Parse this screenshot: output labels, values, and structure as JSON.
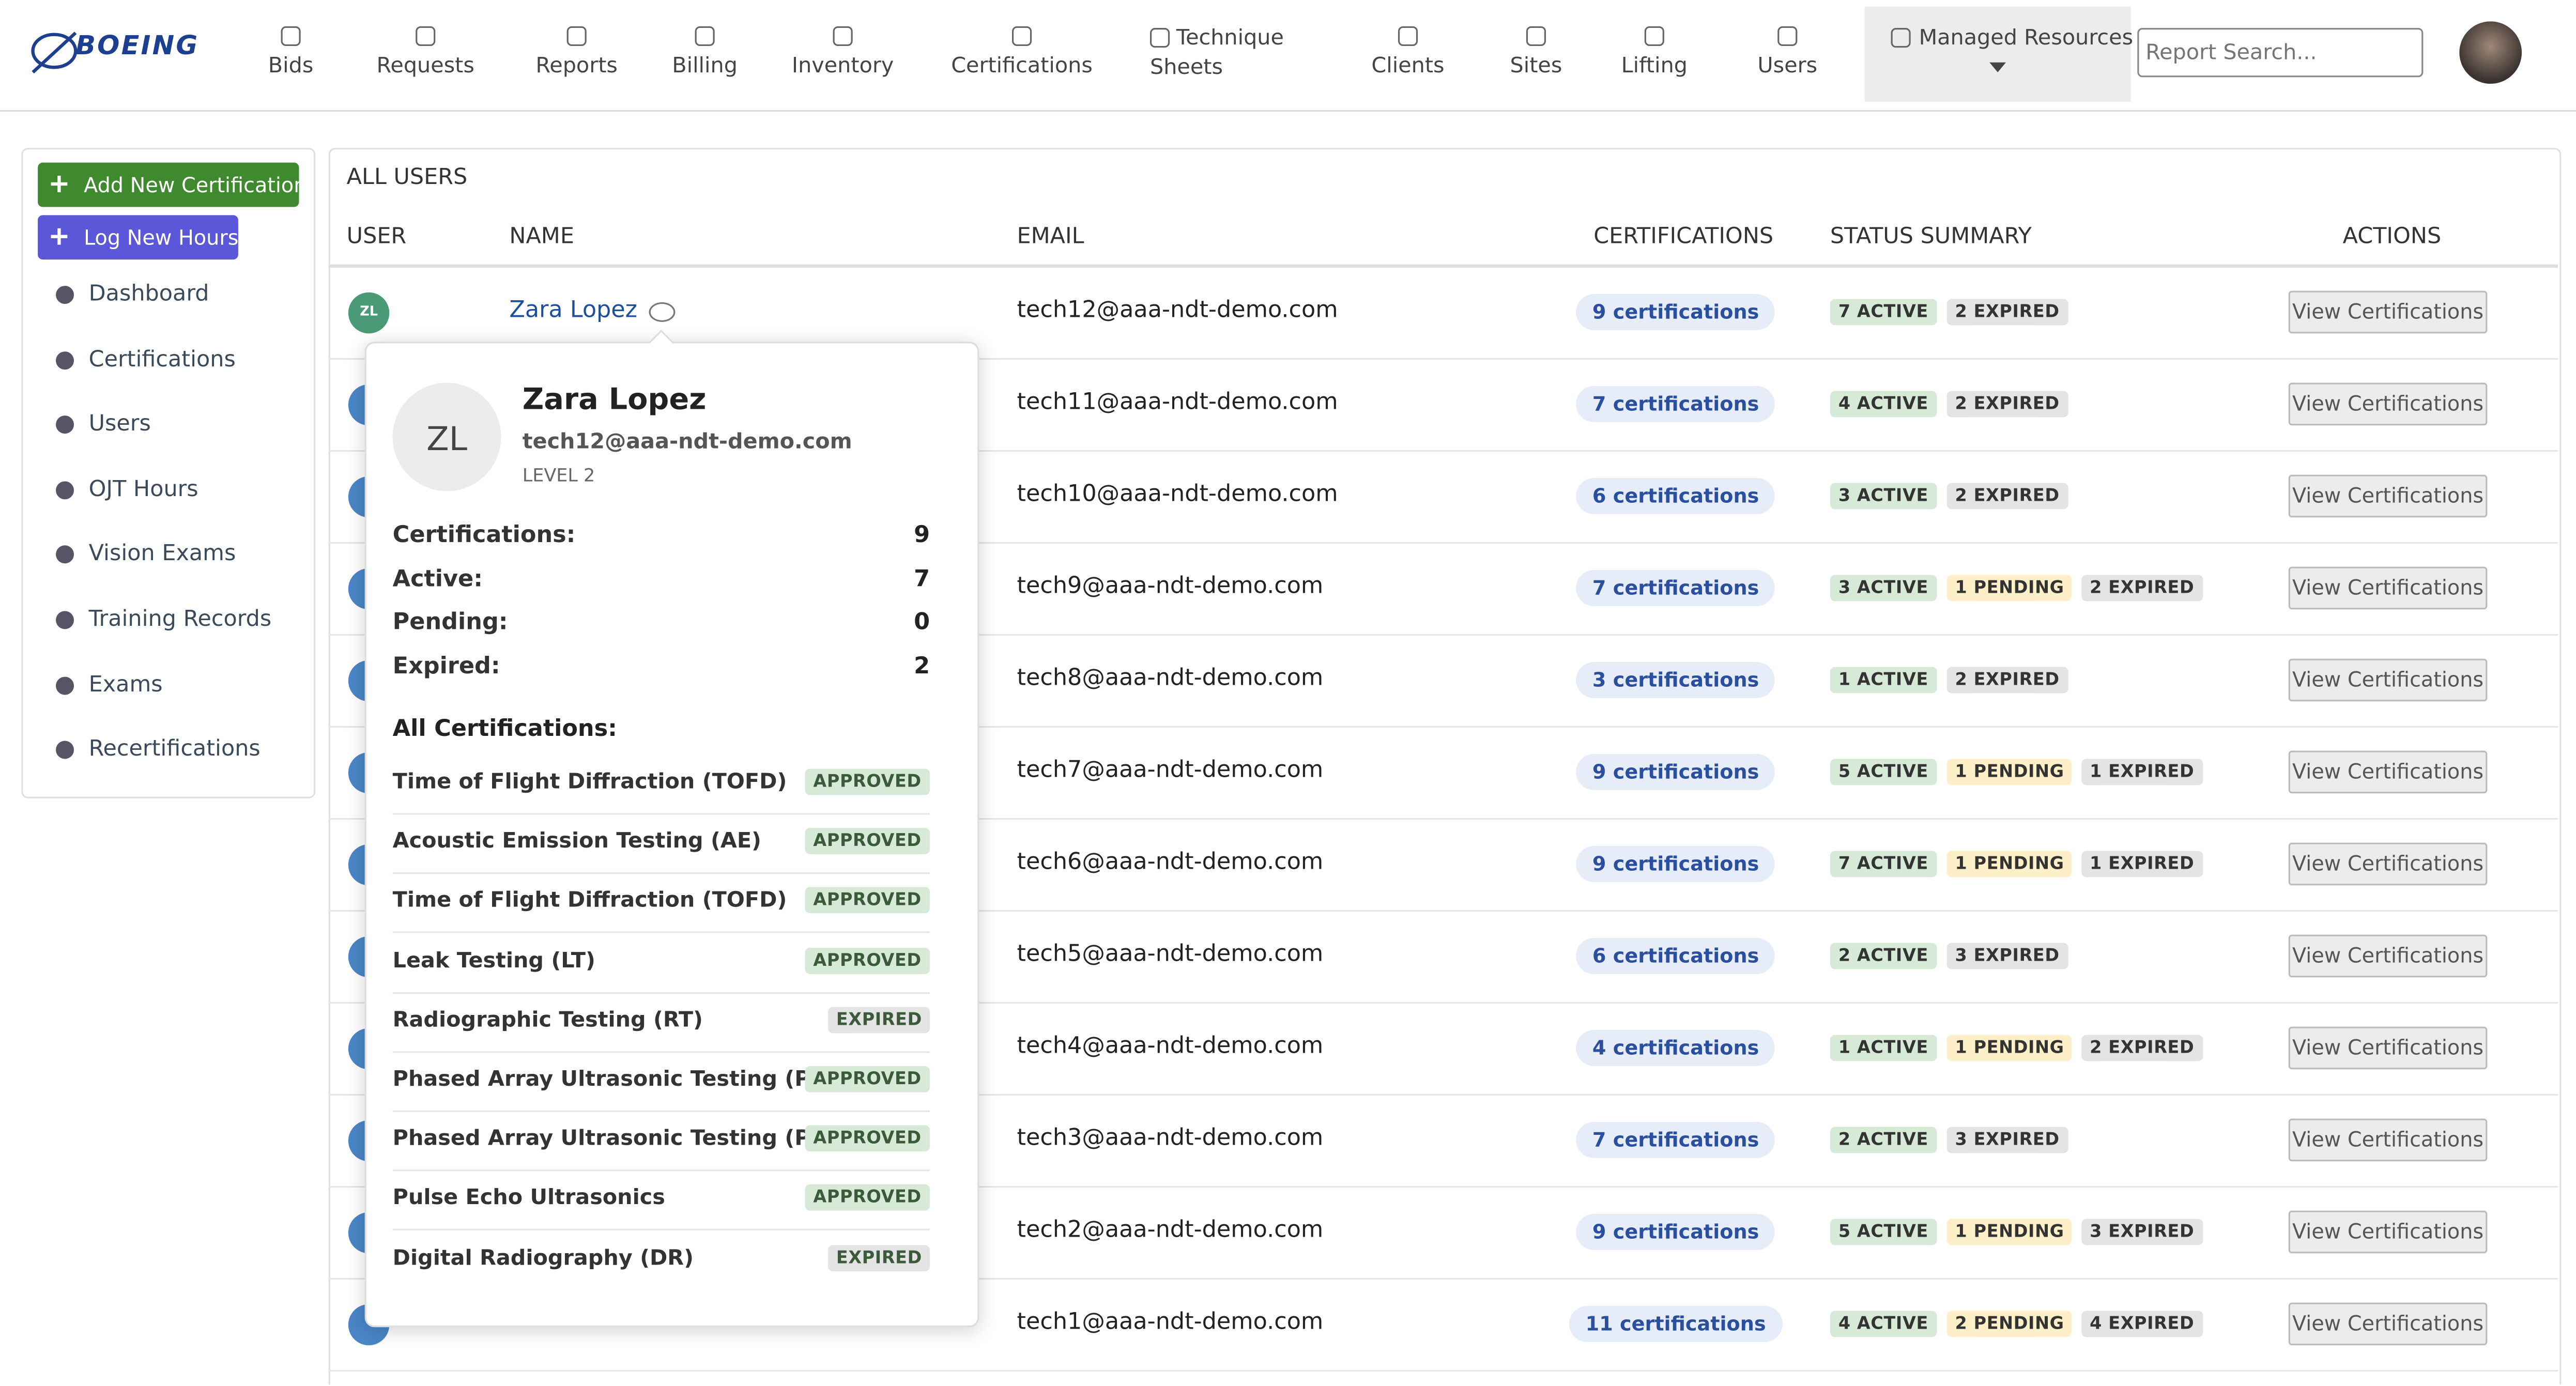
{
  "nav": {
    "brand": "BOEING",
    "items": [
      "Bids",
      "Requests",
      "Reports",
      "Billing",
      "Inventory",
      "Certifications",
      "Technique Sheets",
      "Clients",
      "Sites",
      "Lifting",
      "Users"
    ],
    "managed": "Managed Resources",
    "search_placeholder": "Report Search..."
  },
  "sidebar": {
    "buttons": [
      "Add New Certification",
      "Log New Hours"
    ],
    "links": [
      "Dashboard",
      "Certifications",
      "Users",
      "OJT Hours",
      "Vision Exams",
      "Training Records",
      "Exams",
      "Recertifications"
    ]
  },
  "table": {
    "title": "ALL USERS",
    "columns": [
      "USER",
      "NAME",
      "EMAIL",
      "CERTIFICATIONS",
      "STATUS SUMMARY",
      "ACTIONS"
    ],
    "rows": [
      {
        "initials": "ZL",
        "name": "Zara Lopez",
        "email": "tech12@aaa-ndt-demo.com",
        "certifications": "9 certifications",
        "statuses": [
          {
            "label": "7 ACTIVE",
            "color": "#d6ead7"
          },
          {
            "label": "2 EXPIRED",
            "color": "#e4e4e4"
          }
        ],
        "action": "View Certifications"
      },
      {
        "email": "tech11@aaa-ndt-demo.com",
        "certifications": "7 certifications",
        "statuses": [
          {
            "label": "4 ACTIVE",
            "color": "#d6ead7"
          },
          {
            "label": "2 EXPIRED",
            "color": "#e4e4e4"
          }
        ],
        "action": "View Certifications"
      },
      {
        "email": "tech10@aaa-ndt-demo.com",
        "certifications": "6 certifications",
        "statuses": [
          {
            "label": "3 ACTIVE",
            "color": "#d6ead7"
          },
          {
            "label": "2 EXPIRED",
            "color": "#e4e4e4"
          }
        ],
        "action": "View Certifications"
      },
      {
        "email": "tech9@aaa-ndt-demo.com",
        "certifications": "7 certifications",
        "statuses": [
          {
            "label": "3 ACTIVE",
            "color": "#d6ead7"
          },
          {
            "label": "1 PENDING",
            "color": "#fdf0c8"
          },
          {
            "label": "2 EXPIRED",
            "color": "#e4e4e4"
          }
        ],
        "action": "View Certifications"
      },
      {
        "email": "tech8@aaa-ndt-demo.com",
        "certifications": "3 certifications",
        "statuses": [
          {
            "label": "1 ACTIVE",
            "color": "#d6ead7"
          },
          {
            "label": "2 EXPIRED",
            "color": "#e4e4e4"
          }
        ],
        "action": "View Certifications"
      },
      {
        "email": "tech7@aaa-ndt-demo.com",
        "certifications": "9 certifications",
        "statuses": [
          {
            "label": "5 ACTIVE",
            "color": "#d6ead7"
          },
          {
            "label": "1 PENDING",
            "color": "#fdf0c8"
          },
          {
            "label": "1 EXPIRED",
            "color": "#e4e4e4"
          }
        ],
        "action": "View Certifications"
      },
      {
        "email": "tech6@aaa-ndt-demo.com",
        "certifications": "9 certifications",
        "statuses": [
          {
            "label": "7 ACTIVE",
            "color": "#d6ead7"
          },
          {
            "label": "1 PENDING",
            "color": "#fdf0c8"
          },
          {
            "label": "1 EXPIRED",
            "color": "#e4e4e4"
          }
        ],
        "action": "View Certifications"
      },
      {
        "email": "tech5@aaa-ndt-demo.com",
        "certifications": "6 certifications",
        "statuses": [
          {
            "label": "2 ACTIVE",
            "color": "#d6ead7"
          },
          {
            "label": "3 EXPIRED",
            "color": "#e4e4e4"
          }
        ],
        "action": "View Certifications"
      },
      {
        "email": "tech4@aaa-ndt-demo.com",
        "certifications": "4 certifications",
        "statuses": [
          {
            "label": "1 ACTIVE",
            "color": "#d6ead7"
          },
          {
            "label": "1 PENDING",
            "color": "#fdf0c8"
          },
          {
            "label": "2 EXPIRED",
            "color": "#e4e4e4"
          }
        ],
        "action": "View Certifications"
      },
      {
        "email": "tech3@aaa-ndt-demo.com",
        "certifications": "7 certifications",
        "statuses": [
          {
            "label": "2 ACTIVE",
            "color": "#d6ead7"
          },
          {
            "label": "3 EXPIRED",
            "color": "#e4e4e4"
          }
        ],
        "action": "View Certifications"
      },
      {
        "email": "tech2@aaa-ndt-demo.com",
        "certifications": "9 certifications",
        "statuses": [
          {
            "label": "5 ACTIVE",
            "color": "#d6ead7"
          },
          {
            "label": "1 PENDING",
            "color": "#fdf0c8"
          },
          {
            "label": "3 EXPIRED",
            "color": "#e4e4e4"
          }
        ],
        "action": "View Certifications"
      },
      {
        "email": "tech1@aaa-ndt-demo.com",
        "certifications": "11 certifications",
        "statuses": [
          {
            "label": "4 ACTIVE",
            "color": "#d6ead7"
          },
          {
            "label": "2 PENDING",
            "color": "#fdf0c8"
          },
          {
            "label": "4 EXPIRED",
            "color": "#e4e4e4"
          }
        ],
        "action": "View Certifications"
      }
    ]
  },
  "popover": {
    "initials": "ZL",
    "name": "Zara Lopez",
    "email": "tech12@aaa-ndt-demo.com",
    "level": "LEVEL 2",
    "stats": [
      {
        "label": "Certifications:",
        "value": 9
      },
      {
        "label": "Active:",
        "value": 7
      },
      {
        "label": "Pending:",
        "value": 0
      },
      {
        "label": "Expired:",
        "value": 2
      }
    ],
    "list_title": "All Certifications:",
    "certs": [
      {
        "name": "Time of Flight Diffraction (TOFD)",
        "status": "APPROVED",
        "color": "#d6ead7"
      },
      {
        "name": "Acoustic Emission Testing (AE)",
        "status": "APPROVED",
        "color": "#d6ead7"
      },
      {
        "name": "Time of Flight Diffraction (TOFD)",
        "status": "APPROVED",
        "color": "#d6ead7"
      },
      {
        "name": "Leak Testing (LT)",
        "status": "APPROVED",
        "color": "#d6ead7"
      },
      {
        "name": "Radiographic Testing (RT)",
        "status": "EXPIRED",
        "color": "#e4e4e4"
      },
      {
        "name": "Phased Array Ultrasonic Testing (PAUT)",
        "status": "APPROVED",
        "color": "#d6ead7"
      },
      {
        "name": "Phased Array Ultrasonic Testing (PAUT)",
        "status": "APPROVED",
        "color": "#d6ead7"
      },
      {
        "name": "Pulse Echo Ultrasonics",
        "status": "APPROVED",
        "color": "#d6ead7"
      },
      {
        "name": "Digital Radiography (DR)",
        "status": "EXPIRED",
        "color": "#e4e4e4"
      }
    ]
  }
}
